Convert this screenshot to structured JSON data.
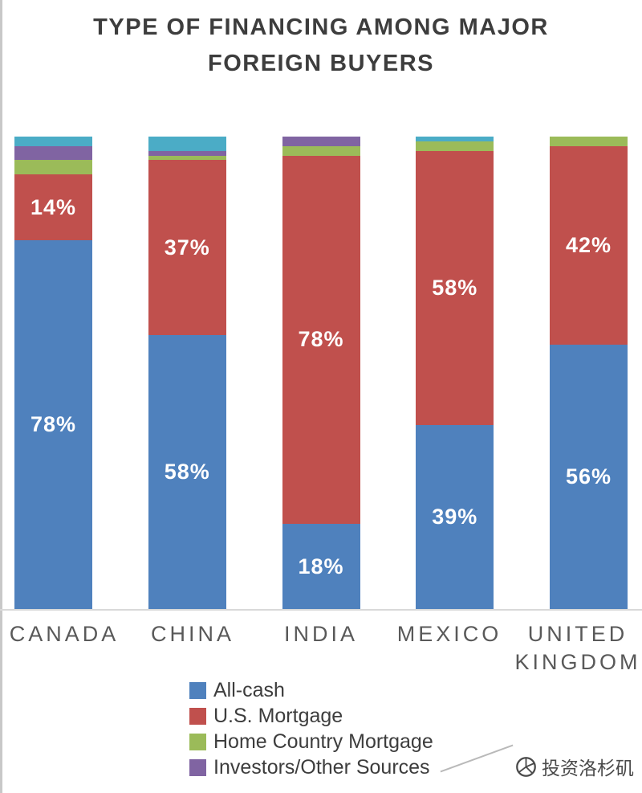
{
  "title": "TYPE OF FINANCING AMONG MAJOR FOREIGN BUYERS",
  "chart_data": {
    "type": "bar",
    "stacked": true,
    "title": "TYPE OF FINANCING AMONG MAJOR FOREIGN BUYERS",
    "categories": [
      "CANADA",
      "CHINA",
      "INDIA",
      "MEXICO",
      "UNITED KINGDOM"
    ],
    "series": [
      {
        "name": "All-cash",
        "color": "#4f81bd",
        "show_labels": true,
        "values": [
          78,
          58,
          18,
          39,
          56
        ]
      },
      {
        "name": "U.S. Mortgage",
        "color": "#c0504d",
        "show_labels": true,
        "values": [
          14,
          37,
          78,
          58,
          42
        ]
      },
      {
        "name": "Home Country Mortgage",
        "color": "#9bbb59",
        "show_labels": false,
        "values": [
          3,
          1,
          2,
          2,
          2
        ]
      },
      {
        "name": "Investors/Other Sources",
        "color": "#8064a2",
        "show_labels": false,
        "values": [
          3,
          1,
          2,
          0,
          0
        ]
      },
      {
        "name": "",
        "color": "#4bacc6",
        "show_labels": false,
        "values": [
          2,
          3,
          0,
          1,
          0
        ]
      }
    ],
    "value_label_format": "{v}%",
    "ylim": [
      0,
      100
    ],
    "grid": false,
    "legend_position": "bottom"
  },
  "legend": {
    "items": [
      {
        "label": "All-cash",
        "color": "#4f81bd"
      },
      {
        "label": "U.S. Mortgage",
        "color": "#c0504d"
      },
      {
        "label": "Home Country Mortgage",
        "color": "#9bbb59"
      },
      {
        "label": "Investors/Other Sources",
        "color": "#8064a2"
      }
    ]
  },
  "watermark": {
    "text": "投资洛杉矶"
  }
}
